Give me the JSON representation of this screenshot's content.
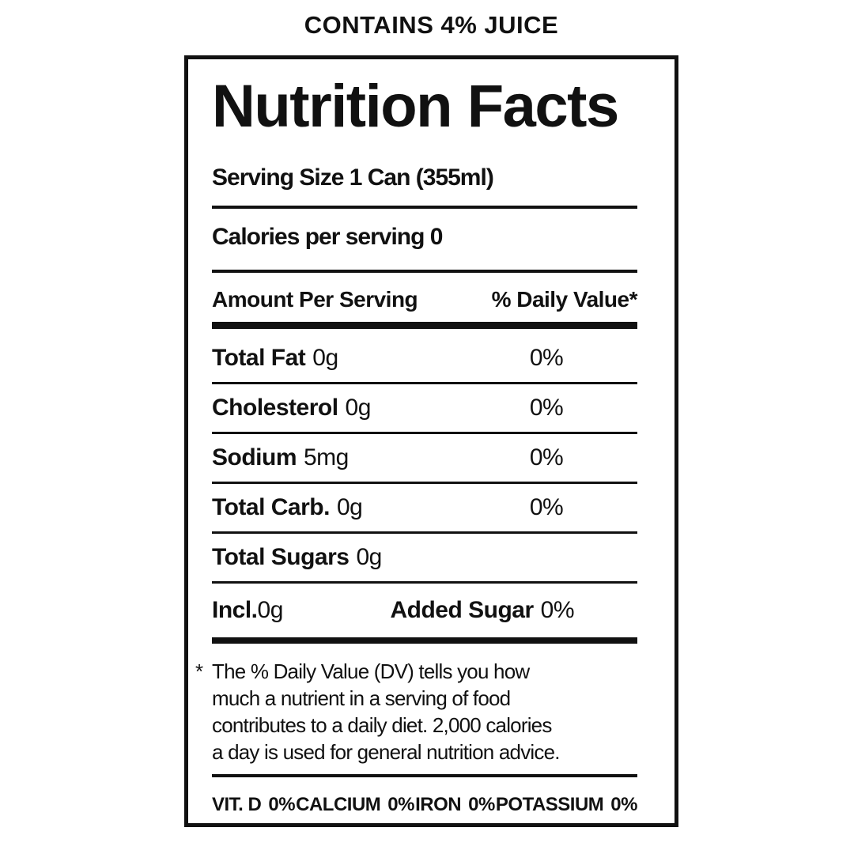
{
  "page": {
    "contains_text": "CONTAINS 4% JUICE"
  },
  "panel": {
    "title": "Nutrition Facts",
    "serving_size": "Serving Size 1 Can (355ml)",
    "calories_line": "Calories per serving 0",
    "column_headers": {
      "left": "Amount Per Serving",
      "right": "% Daily Value*"
    },
    "rows": [
      {
        "name": "Total Fat",
        "amount": "0g",
        "daily_value": "0%"
      },
      {
        "name": "Cholesterol",
        "amount": "0g",
        "daily_value": "0%"
      },
      {
        "name": "Sodium",
        "amount": "5mg",
        "daily_value": "0%"
      },
      {
        "name": "Total Carb.",
        "amount": "0g",
        "daily_value": "0%"
      },
      {
        "name": "Total Sugars",
        "amount": "0g",
        "daily_value": ""
      }
    ],
    "added_sugar_row": {
      "name": "Incl.",
      "amount": "0g",
      "label": "Added Sugar",
      "value": "0%"
    },
    "footnote": {
      "marker": "*",
      "lines": [
        "The % Daily Value (DV) tells you how",
        "much a nutrient in a serving of food",
        "contributes to a daily diet. 2,000 calories",
        "a day is used for general nutrition advice."
      ]
    },
    "micronutrients": [
      {
        "name": "VIT. D",
        "value": "0%"
      },
      {
        "name": "CALCIUM",
        "value": "0%"
      },
      {
        "name": "IRON",
        "value": "0%"
      },
      {
        "name": "POTASSIUM",
        "value": "0%"
      }
    ],
    "colors": {
      "ink": "#111111",
      "background": "#ffffff"
    }
  }
}
